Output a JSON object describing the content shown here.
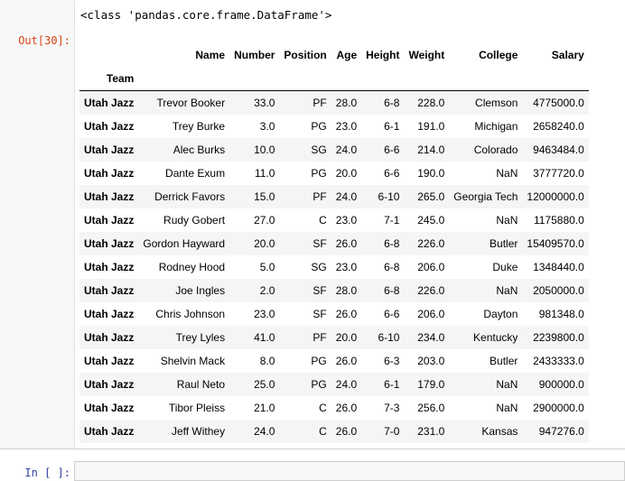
{
  "cells": {
    "out_prompt": "Out[30]:",
    "in_prompt": "In [ ]:"
  },
  "output": {
    "class_line": "<class 'pandas.core.frame.DataFrame'>",
    "index_name": "Team",
    "columns": [
      "Name",
      "Number",
      "Position",
      "Age",
      "Height",
      "Weight",
      "College",
      "Salary"
    ],
    "rows": [
      [
        "Utah Jazz",
        "Trevor Booker",
        "33.0",
        "PF",
        "28.0",
        "6-8",
        "228.0",
        "Clemson",
        "4775000.0"
      ],
      [
        "Utah Jazz",
        "Trey Burke",
        "3.0",
        "PG",
        "23.0",
        "6-1",
        "191.0",
        "Michigan",
        "2658240.0"
      ],
      [
        "Utah Jazz",
        "Alec Burks",
        "10.0",
        "SG",
        "24.0",
        "6-6",
        "214.0",
        "Colorado",
        "9463484.0"
      ],
      [
        "Utah Jazz",
        "Dante Exum",
        "11.0",
        "PG",
        "20.0",
        "6-6",
        "190.0",
        "NaN",
        "3777720.0"
      ],
      [
        "Utah Jazz",
        "Derrick Favors",
        "15.0",
        "PF",
        "24.0",
        "6-10",
        "265.0",
        "Georgia Tech",
        "12000000.0"
      ],
      [
        "Utah Jazz",
        "Rudy Gobert",
        "27.0",
        "C",
        "23.0",
        "7-1",
        "245.0",
        "NaN",
        "1175880.0"
      ],
      [
        "Utah Jazz",
        "Gordon Hayward",
        "20.0",
        "SF",
        "26.0",
        "6-8",
        "226.0",
        "Butler",
        "15409570.0"
      ],
      [
        "Utah Jazz",
        "Rodney Hood",
        "5.0",
        "SG",
        "23.0",
        "6-8",
        "206.0",
        "Duke",
        "1348440.0"
      ],
      [
        "Utah Jazz",
        "Joe Ingles",
        "2.0",
        "SF",
        "28.0",
        "6-8",
        "226.0",
        "NaN",
        "2050000.0"
      ],
      [
        "Utah Jazz",
        "Chris Johnson",
        "23.0",
        "SF",
        "26.0",
        "6-6",
        "206.0",
        "Dayton",
        "981348.0"
      ],
      [
        "Utah Jazz",
        "Trey Lyles",
        "41.0",
        "PF",
        "20.0",
        "6-10",
        "234.0",
        "Kentucky",
        "2239800.0"
      ],
      [
        "Utah Jazz",
        "Shelvin Mack",
        "8.0",
        "PG",
        "26.0",
        "6-3",
        "203.0",
        "Butler",
        "2433333.0"
      ],
      [
        "Utah Jazz",
        "Raul Neto",
        "25.0",
        "PG",
        "24.0",
        "6-1",
        "179.0",
        "NaN",
        "900000.0"
      ],
      [
        "Utah Jazz",
        "Tibor Pleiss",
        "21.0",
        "C",
        "26.0",
        "7-3",
        "256.0",
        "NaN",
        "2900000.0"
      ],
      [
        "Utah Jazz",
        "Jeff Withey",
        "24.0",
        "C",
        "26.0",
        "7-0",
        "231.0",
        "Kansas",
        "947276.0"
      ]
    ]
  }
}
